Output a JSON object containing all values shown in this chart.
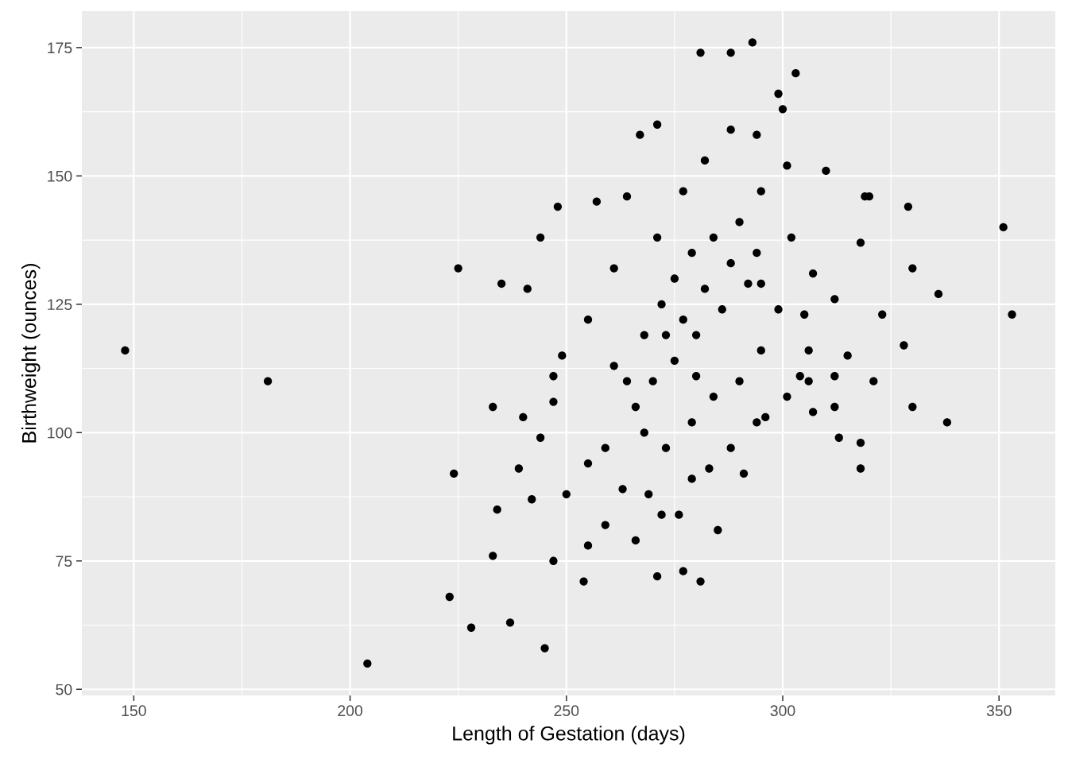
{
  "chart_data": {
    "type": "scatter",
    "xlabel": "Length of Gestation (days)",
    "ylabel": "Birthweight (ounces)",
    "xlim": [
      138,
      363
    ],
    "ylim": [
      48.8,
      182.1
    ],
    "xticks": [
      150,
      200,
      250,
      300,
      350
    ],
    "yticks": [
      50,
      75,
      100,
      125,
      150,
      175
    ],
    "grid": true,
    "marker": "circle",
    "series": [
      {
        "color": "#000000",
        "x": [
          148,
          181,
          204,
          351,
          353,
          338,
          336,
          330,
          330,
          329,
          328,
          323,
          321,
          318,
          318,
          318,
          319,
          310,
          303,
          299,
          293,
          281,
          288,
          267,
          271,
          225,
          224,
          223,
          228,
          245,
          237,
          233,
          234,
          233,
          235,
          244,
          248,
          271,
          277,
          281,
          285,
          254,
          266,
          247,
          239,
          240,
          255,
          249,
          257,
          264,
          305,
          313,
          312,
          306,
          307,
          315,
          312,
          307,
          301,
          296,
          291,
          283,
          276,
          269,
          263,
          259,
          250,
          247,
          255,
          261,
          271,
          277,
          282,
          288,
          294,
          300,
          295,
          301,
          302,
          299,
          295,
          290,
          284,
          279,
          273,
          268,
          264,
          261,
          268,
          272,
          275,
          279,
          284,
          290,
          294,
          292,
          286,
          280,
          275,
          270,
          266,
          280,
          277,
          273,
          282,
          288,
          295,
          306,
          304,
          247,
          244,
          242,
          259,
          255,
          272,
          279,
          288,
          294,
          312,
          241,
          320
        ],
        "values": [
          116,
          110,
          55,
          140,
          123,
          102,
          127,
          132,
          105,
          144,
          117,
          123,
          110,
          93,
          98,
          137,
          146,
          151,
          170,
          166,
          176,
          174,
          174,
          158,
          160,
          132,
          92,
          68,
          62,
          58,
          63,
          76,
          85,
          105,
          129,
          138,
          144,
          72,
          73,
          71,
          81,
          71,
          79,
          75,
          93,
          103,
          94,
          115,
          145,
          146,
          123,
          99,
          105,
          110,
          104,
          115,
          126,
          131,
          107,
          103,
          92,
          93,
          84,
          88,
          89,
          97,
          88,
          106,
          122,
          132,
          138,
          147,
          153,
          159,
          158,
          163,
          147,
          152,
          138,
          124,
          116,
          110,
          107,
          102,
          97,
          100,
          110,
          113,
          119,
          125,
          130,
          135,
          138,
          141,
          135,
          129,
          124,
          119,
          114,
          110,
          105,
          111,
          122,
          119,
          128,
          133,
          129,
          116,
          111,
          111,
          99,
          87,
          82,
          78,
          84,
          91,
          97,
          102,
          111,
          128,
          146
        ]
      }
    ]
  }
}
